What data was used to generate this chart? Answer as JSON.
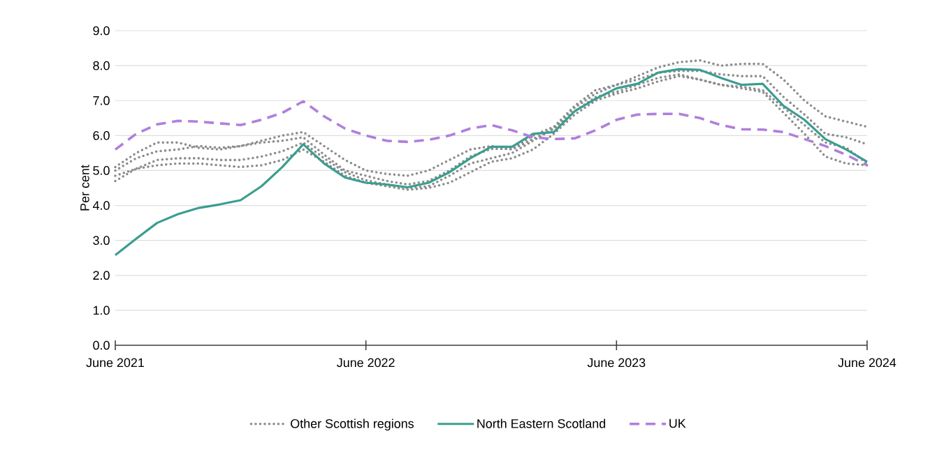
{
  "chart_data": {
    "type": "line",
    "ylabel": "Per cent",
    "x": [
      "2021-06",
      "2021-07",
      "2021-08",
      "2021-09",
      "2021-10",
      "2021-11",
      "2021-12",
      "2022-01",
      "2022-02",
      "2022-03",
      "2022-04",
      "2022-05",
      "2022-06",
      "2022-07",
      "2022-08",
      "2022-09",
      "2022-10",
      "2022-11",
      "2022-12",
      "2023-01",
      "2023-02",
      "2023-03",
      "2023-04",
      "2023-05",
      "2023-06",
      "2023-07",
      "2023-08",
      "2023-09",
      "2023-10",
      "2023-11",
      "2023-12",
      "2024-01",
      "2024-02",
      "2024-03",
      "2024-04",
      "2024-05",
      "2024-06"
    ],
    "xlim": [
      "2021-06",
      "2024-06"
    ],
    "xticks": [
      {
        "value": "2021-06",
        "label": "June 2021"
      },
      {
        "value": "2022-06",
        "label": "June 2022"
      },
      {
        "value": "2023-06",
        "label": "June 2023"
      },
      {
        "value": "2024-06",
        "label": "June 2024"
      }
    ],
    "ylim": [
      0,
      9
    ],
    "yticks": [
      {
        "value": 0,
        "label": "0.0"
      },
      {
        "value": 1,
        "label": "1.0"
      },
      {
        "value": 2,
        "label": "2.0"
      },
      {
        "value": 3,
        "label": "3.0"
      },
      {
        "value": 4,
        "label": "4.0"
      },
      {
        "value": 5,
        "label": "5.0"
      },
      {
        "value": 6,
        "label": "6.0"
      },
      {
        "value": 7,
        "label": "7.0"
      },
      {
        "value": 8,
        "label": "8.0"
      },
      {
        "value": 9,
        "label": "9.0"
      }
    ],
    "grid": "y",
    "legend": "bottom",
    "series": [
      {
        "name": "Other Scottish regions",
        "color": "#8c8c8c",
        "line_style": "dotted",
        "values": [
          5.1,
          5.5,
          5.8,
          5.8,
          5.65,
          5.6,
          5.7,
          5.85,
          6.0,
          6.1,
          5.7,
          5.3,
          5.0,
          4.9,
          4.85,
          5.0,
          5.3,
          5.6,
          5.7,
          5.6,
          5.9,
          6.2,
          6.8,
          7.2,
          7.45,
          7.7,
          7.95,
          8.1,
          8.15,
          8.0,
          8.05,
          8.05,
          7.6,
          7.0,
          6.55,
          6.4,
          6.25
        ]
      },
      {
        "color": "#8c8c8c",
        "line_style": "dotted",
        "values": [
          5.0,
          5.35,
          5.55,
          5.6,
          5.7,
          5.65,
          5.7,
          5.8,
          5.85,
          5.95,
          5.45,
          5.0,
          4.85,
          4.7,
          4.6,
          4.7,
          5.0,
          5.4,
          5.62,
          5.62,
          6.0,
          6.25,
          6.85,
          7.3,
          7.45,
          7.6,
          7.8,
          7.85,
          7.85,
          7.75,
          7.7,
          7.7,
          7.1,
          6.6,
          6.05,
          5.95,
          5.75
        ]
      },
      {
        "color": "#8c8c8c",
        "line_style": "dotted",
        "values": [
          4.85,
          5.05,
          5.3,
          5.35,
          5.35,
          5.3,
          5.3,
          5.4,
          5.55,
          5.8,
          5.35,
          4.95,
          4.72,
          4.6,
          4.5,
          4.55,
          4.85,
          5.2,
          5.35,
          5.5,
          5.85,
          6.2,
          6.7,
          7.1,
          7.25,
          7.45,
          7.65,
          7.75,
          7.6,
          7.45,
          7.4,
          7.3,
          6.8,
          6.3,
          5.8,
          5.65,
          5.2
        ]
      },
      {
        "color": "#8c8c8c",
        "line_style": "dotted",
        "values": [
          4.7,
          5.05,
          5.15,
          5.2,
          5.2,
          5.15,
          5.1,
          5.15,
          5.3,
          5.6,
          5.25,
          4.85,
          4.65,
          4.55,
          4.45,
          4.5,
          4.65,
          4.95,
          5.25,
          5.35,
          5.6,
          6.05,
          6.6,
          7.0,
          7.2,
          7.35,
          7.55,
          7.7,
          7.6,
          7.45,
          7.35,
          7.25,
          6.65,
          6.05,
          5.4,
          5.2,
          5.15
        ]
      },
      {
        "name": "North Eastern Scotland",
        "color": "#3a9e8f",
        "line_style": "solid",
        "values": [
          2.58,
          3.05,
          3.5,
          3.75,
          3.93,
          4.03,
          4.15,
          4.55,
          5.1,
          5.75,
          5.2,
          4.8,
          4.65,
          4.6,
          4.52,
          4.65,
          4.95,
          5.35,
          5.68,
          5.68,
          6.05,
          6.1,
          6.7,
          7.05,
          7.35,
          7.48,
          7.8,
          7.9,
          7.88,
          7.65,
          7.45,
          7.48,
          6.85,
          6.45,
          5.9,
          5.6,
          5.25
        ]
      },
      {
        "name": "UK",
        "color": "#b07fdc",
        "line_style": "dashed",
        "values": [
          5.6,
          6.05,
          6.32,
          6.42,
          6.4,
          6.35,
          6.3,
          6.45,
          6.65,
          6.98,
          6.55,
          6.2,
          6.0,
          5.85,
          5.82,
          5.88,
          6.0,
          6.2,
          6.3,
          6.15,
          5.95,
          5.9,
          5.92,
          6.15,
          6.45,
          6.6,
          6.62,
          6.62,
          6.5,
          6.3,
          6.18,
          6.17,
          6.1,
          5.9,
          5.7,
          5.45,
          5.15
        ]
      }
    ]
  }
}
